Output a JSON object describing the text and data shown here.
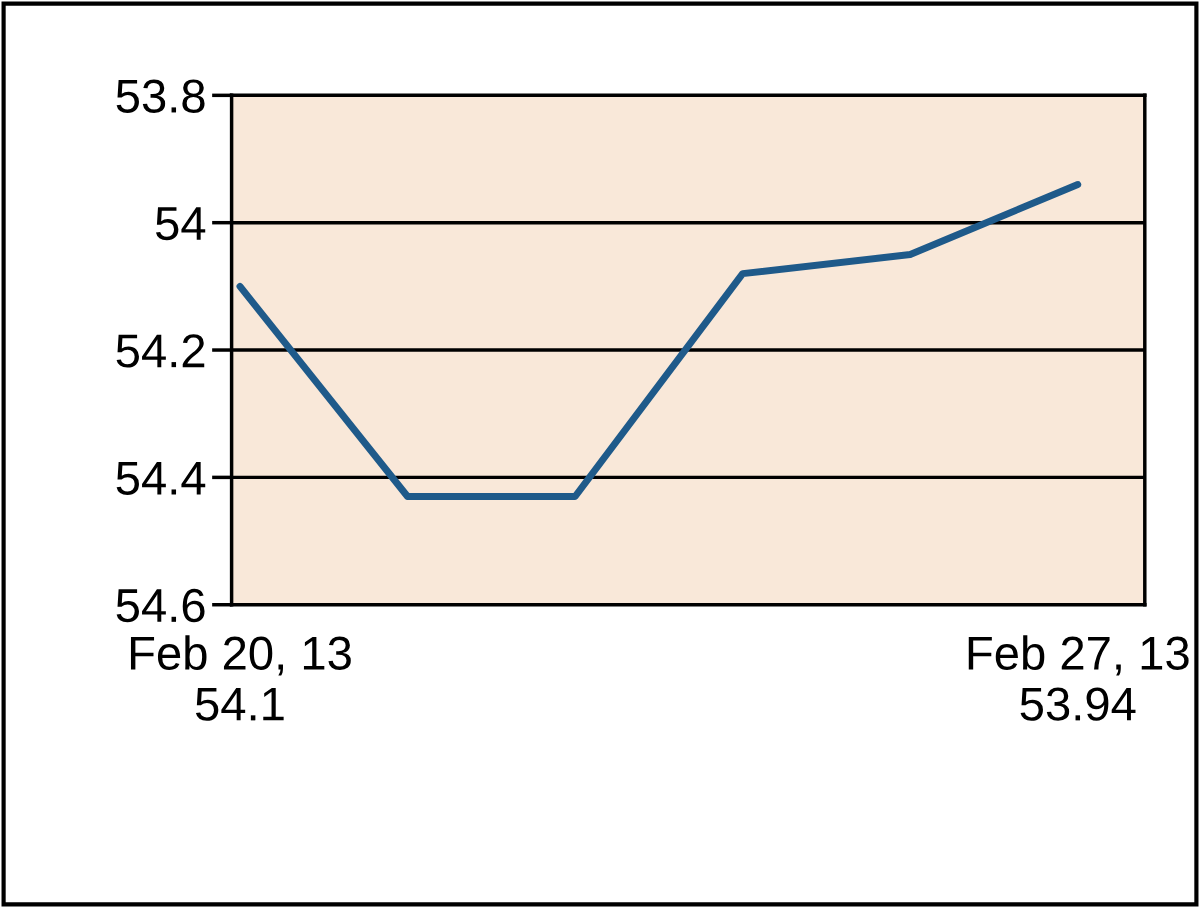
{
  "chart_data": {
    "type": "line",
    "categories": [
      "Feb 20, 13\n54.1",
      null,
      null,
      null,
      null,
      "Feb 27, 13\n53.94"
    ],
    "series": [
      {
        "color": "#1f5a8a",
        "values": [
          54.1,
          54.43,
          54.43,
          54.08,
          54.05,
          53.94
        ]
      }
    ],
    "ylim": [
      54.6,
      53.8
    ],
    "yticks": [
      53.8,
      54,
      54.2,
      54.4,
      54.6
    ],
    "grid": "y",
    "legend": false,
    "marker": "none",
    "line_style": "solid"
  }
}
